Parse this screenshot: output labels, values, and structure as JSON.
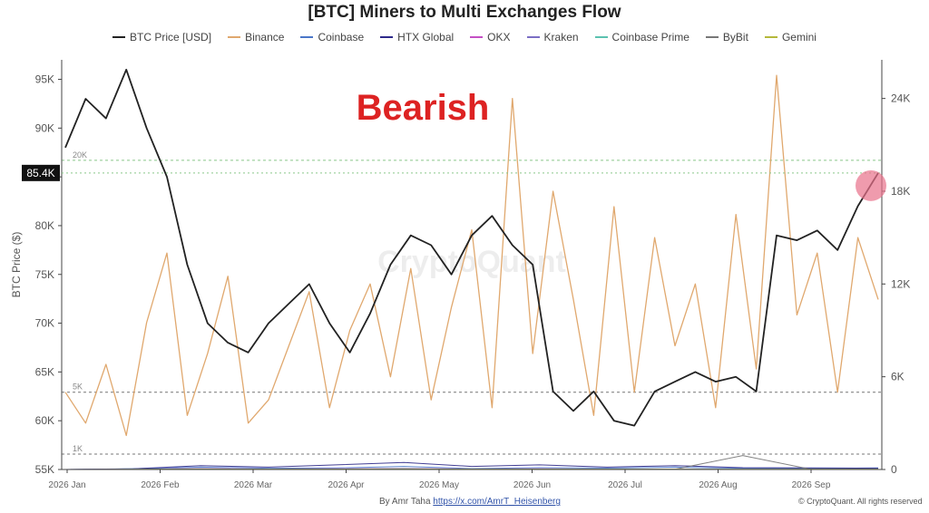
{
  "chart_data": {
    "type": "line",
    "title": "[BTC] Miners to Multi Exchanges Flow",
    "ylabel": "BTC Price ($)",
    "y_left_ticks": [
      "95K",
      "90K",
      "85K",
      "80K",
      "75K",
      "70K",
      "65K",
      "60K",
      "55K"
    ],
    "y_right_ticks": [
      "24K",
      "18K",
      "12K",
      "6K",
      "0"
    ],
    "ylim_left": [
      55000,
      97000
    ],
    "ylim_right": [
      0,
      26500
    ],
    "current_price_label": "85.4K",
    "reference_lines": [
      {
        "label": "20K",
        "value": 20000
      },
      {
        "label": "5K",
        "value": 5000
      },
      {
        "label": "1K",
        "value": 1000
      }
    ],
    "x_tick_labels": [
      "2026 Jan",
      "2026 Feb",
      "2026 Mar",
      "2026 Apr",
      "2026 May",
      "2026 Jun",
      "2026 Jul",
      "2026 Aug",
      "2026 Sep"
    ],
    "series": [
      {
        "name": "BTC Price [USD]",
        "color": "#222222",
        "axis": "left",
        "values": [
          88000,
          93000,
          91000,
          96000,
          90000,
          85000,
          76000,
          70000,
          68000,
          67000,
          70000,
          72000,
          74000,
          70000,
          67000,
          71000,
          76000,
          79000,
          78000,
          75000,
          79000,
          81000,
          78000,
          76000,
          63000,
          61000,
          63000,
          60000,
          59500,
          63000,
          64000,
          65000,
          64000,
          64500,
          63000,
          79000,
          78500,
          79500,
          77500,
          82000,
          85400
        ]
      },
      {
        "name": "Binance",
        "color": "#e0a86e",
        "axis": "right",
        "values": [
          5000,
          3000,
          6800,
          2200,
          9500,
          14000,
          3500,
          7500,
          12500,
          3000,
          4500,
          8000,
          11500,
          4000,
          9000,
          12000,
          6000,
          13000,
          4500,
          10500,
          15500,
          4000,
          24000,
          7500,
          18000,
          11000,
          3500,
          17000,
          5000,
          15000,
          8000,
          12000,
          4000,
          16500,
          6500,
          25500,
          10000,
          14000,
          5000,
          15000,
          11000
        ]
      },
      {
        "name": "Coinbase",
        "color": "#4a76c8",
        "axis": "right",
        "values": [
          0,
          50,
          150,
          80,
          100,
          200,
          60,
          120,
          90,
          150,
          80,
          60,
          100
        ]
      },
      {
        "name": "HTX Global",
        "color": "#2d2a8a",
        "axis": "right",
        "values": [
          0,
          40,
          250,
          150,
          300,
          450,
          200,
          300,
          150,
          250,
          120,
          100,
          80
        ]
      },
      {
        "name": "OKX",
        "color": "#c44fc4",
        "axis": "right",
        "values": [
          0,
          20,
          60,
          30,
          40,
          60,
          30,
          40,
          20,
          30,
          20,
          20,
          10
        ]
      },
      {
        "name": "Kraken",
        "color": "#7b6ec4",
        "axis": "right",
        "values": [
          0,
          10,
          40,
          20,
          30,
          40,
          20,
          30,
          10,
          20,
          10,
          10,
          10
        ]
      },
      {
        "name": "Coinbase Prime",
        "color": "#5bc2b0",
        "axis": "right",
        "values": [
          0,
          10,
          30,
          20,
          20,
          30,
          20,
          20,
          10,
          10,
          10,
          10,
          10
        ]
      },
      {
        "name": "ByBit",
        "color": "#777777",
        "axis": "right",
        "values": [
          0,
          10,
          40,
          20,
          30,
          50,
          20,
          30,
          10,
          20,
          900,
          20,
          10
        ]
      },
      {
        "name": "Gemini",
        "color": "#b5b83a",
        "axis": "right",
        "values": [
          0,
          5,
          20,
          10,
          10,
          20,
          10,
          10,
          10,
          10,
          10,
          10,
          10
        ]
      }
    ],
    "annotation": {
      "text": "Bearish",
      "color": "#dd2222"
    },
    "highlight_marker_color": "#e8708a",
    "watermark": "CryptoQuant",
    "grid": false,
    "legend": "top"
  },
  "credit": {
    "prefix": "By Amr Taha",
    "link": "https://x.com/AmrT_Heisenberg",
    "copyright": "© CryptoQuant. All rights reserved"
  }
}
